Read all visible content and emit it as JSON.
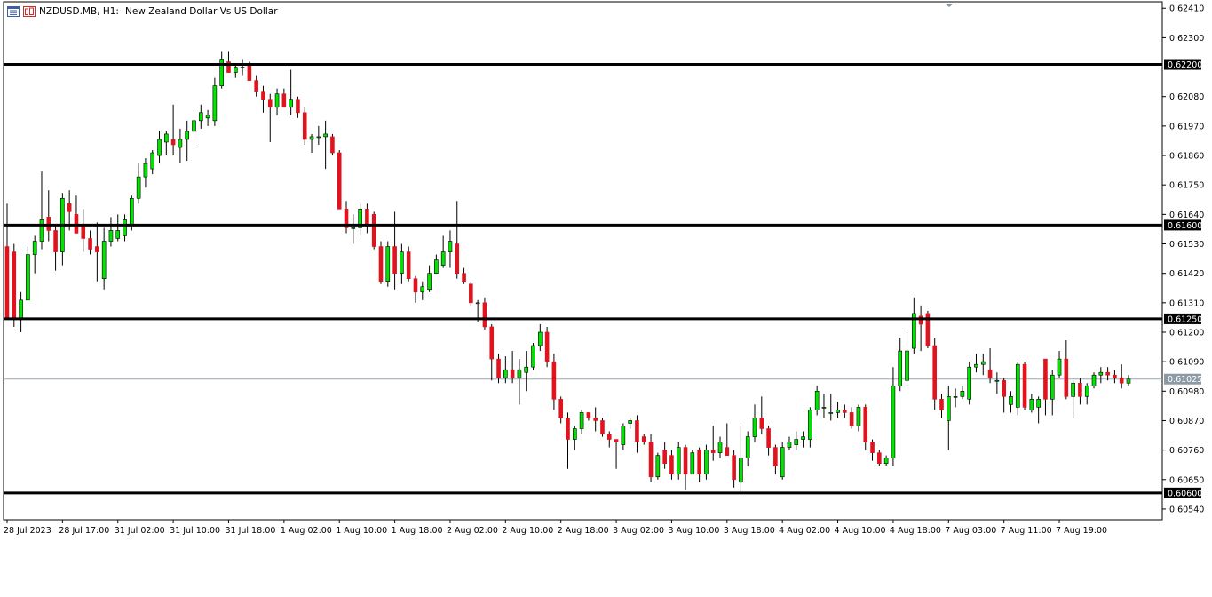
{
  "header": {
    "symbol_timeframe": "NZDUSD.MB, H1:",
    "description": "New Zealand Dollar Vs US Dollar",
    "icons": [
      "chart-window-icon",
      "chart-window-icon-red"
    ]
  },
  "colors": {
    "bull": "#00e400",
    "bear": "#e0141e",
    "candle_border": "#000000",
    "wick": "#000000",
    "level_line": "#000000",
    "current_price_line": "#9aa8b4",
    "current_price_label_bg": "#8c9aa6",
    "level_label_bg": "#000000",
    "label_text": "#ffffff"
  },
  "chart_data": {
    "type": "candlestick",
    "title": "NZDUSD.MB, H1:  New Zealand Dollar Vs US Dollar",
    "y_ticks": [
      "0.62410",
      "0.62300",
      "0.62200",
      "0.62080",
      "0.61970",
      "0.61860",
      "0.61750",
      "0.61640",
      "0.61600",
      "0.61530",
      "0.61420",
      "0.61310",
      "0.61250",
      "0.61200",
      "0.61090",
      "0.61025",
      "0.60980",
      "0.60870",
      "0.60760",
      "0.60650",
      "0.60600",
      "0.60540"
    ],
    "y_tick_plain": [
      "0.62410",
      "0.62300",
      "0.62080",
      "0.61970",
      "0.61860",
      "0.61750",
      "0.61640",
      "0.61530",
      "0.61420",
      "0.61310",
      "0.61200",
      "0.61090",
      "0.60980",
      "0.60870",
      "0.60760",
      "0.60650",
      "0.60540"
    ],
    "ylim": [
      0.605,
      0.62434
    ],
    "x_labels": [
      "28 Jul 2023",
      "28 Jul 17:00",
      "31 Jul 02:00",
      "31 Jul 10:00",
      "31 Jul 18:00",
      "1 Aug 02:00",
      "1 Aug 10:00",
      "1 Aug 18:00",
      "2 Aug 02:00",
      "2 Aug 10:00",
      "2 Aug 18:00",
      "3 Aug 02:00",
      "3 Aug 10:00",
      "3 Aug 18:00",
      "4 Aug 02:00",
      "4 Aug 10:00",
      "4 Aug 18:00",
      "7 Aug 03:00",
      "7 Aug 11:00",
      "7 Aug 19:00"
    ],
    "levels": [
      {
        "value": 0.622,
        "label": "0.62200"
      },
      {
        "value": 0.616,
        "label": "0.61600"
      },
      {
        "value": 0.6125,
        "label": "0.61250"
      },
      {
        "value": 0.606,
        "label": "0.60600"
      }
    ],
    "current_price": {
      "value": 0.61025,
      "label": "0.61025"
    },
    "candles": [
      {
        "o": 0.6152,
        "h": 0.6168,
        "l": 0.6125,
        "c": 0.6125
      },
      {
        "o": 0.615,
        "h": 0.6153,
        "l": 0.6122,
        "c": 0.6125
      },
      {
        "o": 0.6125,
        "h": 0.6135,
        "l": 0.612,
        "c": 0.6132
      },
      {
        "o": 0.6132,
        "h": 0.6152,
        "l": 0.6132,
        "c": 0.6149
      },
      {
        "o": 0.6149,
        "h": 0.6156,
        "l": 0.6142,
        "c": 0.6154
      },
      {
        "o": 0.6154,
        "h": 0.618,
        "l": 0.6151,
        "c": 0.6162
      },
      {
        "o": 0.6163,
        "h": 0.6173,
        "l": 0.6154,
        "c": 0.6158
      },
      {
        "o": 0.6158,
        "h": 0.616,
        "l": 0.6143,
        "c": 0.615
      },
      {
        "o": 0.615,
        "h": 0.6172,
        "l": 0.6145,
        "c": 0.617
      },
      {
        "o": 0.6168,
        "h": 0.6173,
        "l": 0.6158,
        "c": 0.6165
      },
      {
        "o": 0.6164,
        "h": 0.6171,
        "l": 0.6158,
        "c": 0.6157
      },
      {
        "o": 0.616,
        "h": 0.6166,
        "l": 0.615,
        "c": 0.6155
      },
      {
        "o": 0.6155,
        "h": 0.6158,
        "l": 0.6149,
        "c": 0.6151
      },
      {
        "o": 0.6152,
        "h": 0.6161,
        "l": 0.6139,
        "c": 0.615
      },
      {
        "o": 0.614,
        "h": 0.6159,
        "l": 0.6136,
        "c": 0.6154
      },
      {
        "o": 0.6154,
        "h": 0.6163,
        "l": 0.6152,
        "c": 0.6158
      },
      {
        "o": 0.6155,
        "h": 0.6164,
        "l": 0.6154,
        "c": 0.6158
      },
      {
        "o": 0.6156,
        "h": 0.6164,
        "l": 0.6154,
        "c": 0.6162
      },
      {
        "o": 0.616,
        "h": 0.6171,
        "l": 0.6158,
        "c": 0.617
      },
      {
        "o": 0.617,
        "h": 0.6183,
        "l": 0.6168,
        "c": 0.6178
      },
      {
        "o": 0.6178,
        "h": 0.6185,
        "l": 0.6174,
        "c": 0.6183
      },
      {
        "o": 0.6181,
        "h": 0.6188,
        "l": 0.6179,
        "c": 0.6187
      },
      {
        "o": 0.6186,
        "h": 0.6195,
        "l": 0.6183,
        "c": 0.6192
      },
      {
        "o": 0.6191,
        "h": 0.6195,
        "l": 0.6186,
        "c": 0.6194
      },
      {
        "o": 0.6192,
        "h": 0.6205,
        "l": 0.6186,
        "c": 0.619
      },
      {
        "o": 0.6189,
        "h": 0.6196,
        "l": 0.6183,
        "c": 0.6192
      },
      {
        "o": 0.6192,
        "h": 0.6199,
        "l": 0.6184,
        "c": 0.6195
      },
      {
        "o": 0.6195,
        "h": 0.6203,
        "l": 0.619,
        "c": 0.6199
      },
      {
        "o": 0.6199,
        "h": 0.6205,
        "l": 0.6196,
        "c": 0.6202
      },
      {
        "o": 0.62,
        "h": 0.6203,
        "l": 0.6197,
        "c": 0.6201
      },
      {
        "o": 0.6199,
        "h": 0.6215,
        "l": 0.6197,
        "c": 0.6212
      },
      {
        "o": 0.6212,
        "h": 0.6225,
        "l": 0.6211,
        "c": 0.6222
      },
      {
        "o": 0.6221,
        "h": 0.6225,
        "l": 0.6217,
        "c": 0.6217
      },
      {
        "o": 0.6217,
        "h": 0.622,
        "l": 0.6215,
        "c": 0.6219
      },
      {
        "o": 0.6219,
        "h": 0.6222,
        "l": 0.6216,
        "c": 0.6219
      },
      {
        "o": 0.622,
        "h": 0.6221,
        "l": 0.6214,
        "c": 0.6214
      },
      {
        "o": 0.6214,
        "h": 0.6216,
        "l": 0.6208,
        "c": 0.621
      },
      {
        "o": 0.621,
        "h": 0.6212,
        "l": 0.6202,
        "c": 0.6207
      },
      {
        "o": 0.6207,
        "h": 0.6209,
        "l": 0.6191,
        "c": 0.6204
      },
      {
        "o": 0.6204,
        "h": 0.6211,
        "l": 0.6201,
        "c": 0.6209
      },
      {
        "o": 0.6209,
        "h": 0.6211,
        "l": 0.6204,
        "c": 0.6204
      },
      {
        "o": 0.6204,
        "h": 0.6218,
        "l": 0.6201,
        "c": 0.6207
      },
      {
        "o": 0.6207,
        "h": 0.6208,
        "l": 0.62,
        "c": 0.6202
      },
      {
        "o": 0.6202,
        "h": 0.6204,
        "l": 0.619,
        "c": 0.6192
      },
      {
        "o": 0.6192,
        "h": 0.6194,
        "l": 0.6187,
        "c": 0.6193
      },
      {
        "o": 0.6193,
        "h": 0.6197,
        "l": 0.619,
        "c": 0.6193
      },
      {
        "o": 0.6193,
        "h": 0.6199,
        "l": 0.6181,
        "c": 0.6194
      },
      {
        "o": 0.6193,
        "h": 0.6194,
        "l": 0.6186,
        "c": 0.6187
      },
      {
        "o": 0.6187,
        "h": 0.6188,
        "l": 0.6166,
        "c": 0.6166
      },
      {
        "o": 0.6166,
        "h": 0.6169,
        "l": 0.6157,
        "c": 0.6159
      },
      {
        "o": 0.6159,
        "h": 0.6164,
        "l": 0.6153,
        "c": 0.6159
      },
      {
        "o": 0.6159,
        "h": 0.6168,
        "l": 0.6156,
        "c": 0.6166
      },
      {
        "o": 0.6166,
        "h": 0.6168,
        "l": 0.6157,
        "c": 0.616
      },
      {
        "o": 0.6164,
        "h": 0.6165,
        "l": 0.6151,
        "c": 0.6152
      },
      {
        "o": 0.6152,
        "h": 0.6154,
        "l": 0.6138,
        "c": 0.6139
      },
      {
        "o": 0.6139,
        "h": 0.6154,
        "l": 0.6137,
        "c": 0.6152
      },
      {
        "o": 0.6152,
        "h": 0.6165,
        "l": 0.6136,
        "c": 0.6142
      },
      {
        "o": 0.6142,
        "h": 0.6153,
        "l": 0.6138,
        "c": 0.615
      },
      {
        "o": 0.615,
        "h": 0.6152,
        "l": 0.6139,
        "c": 0.614
      },
      {
        "o": 0.614,
        "h": 0.6141,
        "l": 0.6131,
        "c": 0.6135
      },
      {
        "o": 0.6135,
        "h": 0.6139,
        "l": 0.6132,
        "c": 0.6137
      },
      {
        "o": 0.6136,
        "h": 0.6145,
        "l": 0.6135,
        "c": 0.6142
      },
      {
        "o": 0.6142,
        "h": 0.6149,
        "l": 0.6142,
        "c": 0.6147
      },
      {
        "o": 0.6145,
        "h": 0.6156,
        "l": 0.6144,
        "c": 0.615
      },
      {
        "o": 0.615,
        "h": 0.6158,
        "l": 0.6144,
        "c": 0.6154
      },
      {
        "o": 0.6153,
        "h": 0.6169,
        "l": 0.614,
        "c": 0.6142
      },
      {
        "o": 0.6142,
        "h": 0.6144,
        "l": 0.6138,
        "c": 0.6139
      },
      {
        "o": 0.6138,
        "h": 0.6139,
        "l": 0.613,
        "c": 0.6131
      },
      {
        "o": 0.6131,
        "h": 0.6132,
        "l": 0.6124,
        "c": 0.6131
      },
      {
        "o": 0.6131,
        "h": 0.6133,
        "l": 0.6121,
        "c": 0.6122
      },
      {
        "o": 0.6122,
        "h": 0.6123,
        "l": 0.6102,
        "c": 0.611
      },
      {
        "o": 0.611,
        "h": 0.6112,
        "l": 0.6101,
        "c": 0.6103
      },
      {
        "o": 0.6103,
        "h": 0.6111,
        "l": 0.6101,
        "c": 0.6106
      },
      {
        "o": 0.6106,
        "h": 0.6113,
        "l": 0.6101,
        "c": 0.6103
      },
      {
        "o": 0.6103,
        "h": 0.611,
        "l": 0.6093,
        "c": 0.6106
      },
      {
        "o": 0.6105,
        "h": 0.6113,
        "l": 0.6098,
        "c": 0.6107
      },
      {
        "o": 0.6107,
        "h": 0.6116,
        "l": 0.6106,
        "c": 0.6115
      },
      {
        "o": 0.6115,
        "h": 0.6123,
        "l": 0.6113,
        "c": 0.612
      },
      {
        "o": 0.612,
        "h": 0.6122,
        "l": 0.6107,
        "c": 0.6109
      },
      {
        "o": 0.6109,
        "h": 0.6112,
        "l": 0.6091,
        "c": 0.6095
      },
      {
        "o": 0.6095,
        "h": 0.6096,
        "l": 0.6086,
        "c": 0.6088
      },
      {
        "o": 0.6088,
        "h": 0.609,
        "l": 0.6069,
        "c": 0.608
      },
      {
        "o": 0.608,
        "h": 0.6085,
        "l": 0.6076,
        "c": 0.6084
      },
      {
        "o": 0.6084,
        "h": 0.6091,
        "l": 0.6082,
        "c": 0.609
      },
      {
        "o": 0.609,
        "h": 0.609,
        "l": 0.6087,
        "c": 0.6088
      },
      {
        "o": 0.6088,
        "h": 0.6092,
        "l": 0.6083,
        "c": 0.6087
      },
      {
        "o": 0.6087,
        "h": 0.6088,
        "l": 0.6081,
        "c": 0.6082
      },
      {
        "o": 0.6082,
        "h": 0.6083,
        "l": 0.6077,
        "c": 0.608
      },
      {
        "o": 0.608,
        "h": 0.608,
        "l": 0.6069,
        "c": 0.6079
      },
      {
        "o": 0.6078,
        "h": 0.6086,
        "l": 0.6076,
        "c": 0.6085
      },
      {
        "o": 0.6086,
        "h": 0.6088,
        "l": 0.6084,
        "c": 0.6087
      },
      {
        "o": 0.6087,
        "h": 0.6089,
        "l": 0.6075,
        "c": 0.6079
      },
      {
        "o": 0.6081,
        "h": 0.6082,
        "l": 0.6078,
        "c": 0.6079
      },
      {
        "o": 0.6079,
        "h": 0.6082,
        "l": 0.6064,
        "c": 0.6066
      },
      {
        "o": 0.6066,
        "h": 0.6075,
        "l": 0.6065,
        "c": 0.6074
      },
      {
        "o": 0.6076,
        "h": 0.6079,
        "l": 0.6069,
        "c": 0.6071
      },
      {
        "o": 0.6074,
        "h": 0.6076,
        "l": 0.6065,
        "c": 0.6067
      },
      {
        "o": 0.6067,
        "h": 0.6079,
        "l": 0.6065,
        "c": 0.6077
      },
      {
        "o": 0.6077,
        "h": 0.6078,
        "l": 0.6061,
        "c": 0.6067
      },
      {
        "o": 0.6067,
        "h": 0.6076,
        "l": 0.6067,
        "c": 0.6075
      },
      {
        "o": 0.6076,
        "h": 0.6077,
        "l": 0.6064,
        "c": 0.6067
      },
      {
        "o": 0.6067,
        "h": 0.6078,
        "l": 0.6065,
        "c": 0.6076
      },
      {
        "o": 0.6076,
        "h": 0.6085,
        "l": 0.6072,
        "c": 0.6075
      },
      {
        "o": 0.6075,
        "h": 0.6081,
        "l": 0.6073,
        "c": 0.6079
      },
      {
        "o": 0.6077,
        "h": 0.6086,
        "l": 0.6074,
        "c": 0.6074
      },
      {
        "o": 0.6074,
        "h": 0.6076,
        "l": 0.6062,
        "c": 0.6065
      },
      {
        "o": 0.6064,
        "h": 0.6085,
        "l": 0.606,
        "c": 0.6073
      },
      {
        "o": 0.6073,
        "h": 0.6083,
        "l": 0.607,
        "c": 0.6081
      },
      {
        "o": 0.6081,
        "h": 0.6093,
        "l": 0.6079,
        "c": 0.6088
      },
      {
        "o": 0.6088,
        "h": 0.6096,
        "l": 0.6082,
        "c": 0.6084
      },
      {
        "o": 0.6084,
        "h": 0.6085,
        "l": 0.6074,
        "c": 0.6077
      },
      {
        "o": 0.6077,
        "h": 0.6078,
        "l": 0.6067,
        "c": 0.607
      },
      {
        "o": 0.6066,
        "h": 0.6079,
        "l": 0.6065,
        "c": 0.6077
      },
      {
        "o": 0.6077,
        "h": 0.6081,
        "l": 0.6076,
        "c": 0.6079
      },
      {
        "o": 0.6078,
        "h": 0.6083,
        "l": 0.6076,
        "c": 0.608
      },
      {
        "o": 0.608,
        "h": 0.6083,
        "l": 0.6077,
        "c": 0.6081
      },
      {
        "o": 0.608,
        "h": 0.6092,
        "l": 0.6077,
        "c": 0.6091
      },
      {
        "o": 0.6091,
        "h": 0.61,
        "l": 0.6089,
        "c": 0.6098
      },
      {
        "o": 0.6092,
        "h": 0.6097,
        "l": 0.6088,
        "c": 0.6092
      },
      {
        "o": 0.609,
        "h": 0.6097,
        "l": 0.6087,
        "c": 0.609
      },
      {
        "o": 0.609,
        "h": 0.6094,
        "l": 0.6088,
        "c": 0.6091
      },
      {
        "o": 0.6091,
        "h": 0.6093,
        "l": 0.6088,
        "c": 0.609
      },
      {
        "o": 0.609,
        "h": 0.6092,
        "l": 0.6084,
        "c": 0.6085
      },
      {
        "o": 0.6085,
        "h": 0.6093,
        "l": 0.6083,
        "c": 0.6092
      },
      {
        "o": 0.6092,
        "h": 0.6093,
        "l": 0.6076,
        "c": 0.6079
      },
      {
        "o": 0.6079,
        "h": 0.608,
        "l": 0.6072,
        "c": 0.6075
      },
      {
        "o": 0.6075,
        "h": 0.6076,
        "l": 0.607,
        "c": 0.6071
      },
      {
        "o": 0.6071,
        "h": 0.6074,
        "l": 0.607,
        "c": 0.6073
      },
      {
        "o": 0.6073,
        "h": 0.6107,
        "l": 0.607,
        "c": 0.61
      },
      {
        "o": 0.61,
        "h": 0.6118,
        "l": 0.6098,
        "c": 0.6113
      },
      {
        "o": 0.6102,
        "h": 0.6121,
        "l": 0.61,
        "c": 0.6113
      },
      {
        "o": 0.6114,
        "h": 0.6133,
        "l": 0.6112,
        "c": 0.6127
      },
      {
        "o": 0.6126,
        "h": 0.613,
        "l": 0.6113,
        "c": 0.6123
      },
      {
        "o": 0.6127,
        "h": 0.6128,
        "l": 0.6114,
        "c": 0.6115
      },
      {
        "o": 0.6115,
        "h": 0.6118,
        "l": 0.6091,
        "c": 0.6095
      },
      {
        "o": 0.6095,
        "h": 0.6097,
        "l": 0.6088,
        "c": 0.6091
      },
      {
        "o": 0.6087,
        "h": 0.61,
        "l": 0.6076,
        "c": 0.6096
      },
      {
        "o": 0.6096,
        "h": 0.6099,
        "l": 0.6092,
        "c": 0.6096
      },
      {
        "o": 0.6096,
        "h": 0.61,
        "l": 0.6095,
        "c": 0.6098
      },
      {
        "o": 0.6095,
        "h": 0.6109,
        "l": 0.6093,
        "c": 0.6107
      },
      {
        "o": 0.6107,
        "h": 0.6112,
        "l": 0.6105,
        "c": 0.6108
      },
      {
        "o": 0.6108,
        "h": 0.6112,
        "l": 0.6104,
        "c": 0.6109
      },
      {
        "o": 0.6106,
        "h": 0.6114,
        "l": 0.6101,
        "c": 0.6103
      },
      {
        "o": 0.6102,
        "h": 0.6105,
        "l": 0.6097,
        "c": 0.6102
      },
      {
        "o": 0.6102,
        "h": 0.6103,
        "l": 0.609,
        "c": 0.6096
      },
      {
        "o": 0.6093,
        "h": 0.6098,
        "l": 0.609,
        "c": 0.6096
      },
      {
        "o": 0.6092,
        "h": 0.6109,
        "l": 0.6089,
        "c": 0.6108
      },
      {
        "o": 0.6108,
        "h": 0.6109,
        "l": 0.6091,
        "c": 0.6092
      },
      {
        "o": 0.6091,
        "h": 0.6097,
        "l": 0.609,
        "c": 0.6095
      },
      {
        "o": 0.6092,
        "h": 0.6096,
        "l": 0.6086,
        "c": 0.6095
      },
      {
        "o": 0.611,
        "h": 0.611,
        "l": 0.6089,
        "c": 0.6095
      },
      {
        "o": 0.6095,
        "h": 0.6106,
        "l": 0.6089,
        "c": 0.6104
      },
      {
        "o": 0.6104,
        "h": 0.6113,
        "l": 0.6103,
        "c": 0.611
      },
      {
        "o": 0.611,
        "h": 0.6117,
        "l": 0.6095,
        "c": 0.6096
      },
      {
        "o": 0.6096,
        "h": 0.6102,
        "l": 0.6088,
        "c": 0.6101
      },
      {
        "o": 0.6101,
        "h": 0.6103,
        "l": 0.6093,
        "c": 0.6096
      },
      {
        "o": 0.6096,
        "h": 0.6101,
        "l": 0.6093,
        "c": 0.61
      },
      {
        "o": 0.61,
        "h": 0.6105,
        "l": 0.6099,
        "c": 0.6104
      },
      {
        "o": 0.6104,
        "h": 0.6107,
        "l": 0.6101,
        "c": 0.6105
      },
      {
        "o": 0.6105,
        "h": 0.6107,
        "l": 0.6102,
        "c": 0.6104
      },
      {
        "o": 0.6104,
        "h": 0.6106,
        "l": 0.6101,
        "c": 0.6103
      },
      {
        "o": 0.6103,
        "h": 0.6108,
        "l": 0.6099,
        "c": 0.6101
      },
      {
        "o": 0.6101,
        "h": 0.6104,
        "l": 0.61,
        "c": 0.61025
      }
    ]
  }
}
